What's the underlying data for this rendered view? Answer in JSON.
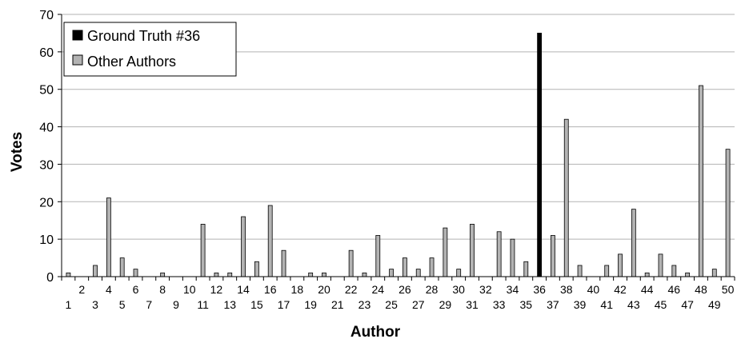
{
  "chart_data": {
    "type": "bar",
    "xlabel": "Author",
    "ylabel": "Votes",
    "ylim": [
      0,
      70
    ],
    "yticks": [
      0,
      10,
      20,
      30,
      40,
      50,
      60,
      70
    ],
    "grid": "horizontal",
    "legend_position": "top-left",
    "categories": [
      "1",
      "2",
      "3",
      "4",
      "5",
      "6",
      "7",
      "8",
      "9",
      "10",
      "11",
      "12",
      "13",
      "14",
      "15",
      "16",
      "17",
      "18",
      "19",
      "20",
      "21",
      "22",
      "23",
      "24",
      "25",
      "26",
      "27",
      "28",
      "29",
      "30",
      "31",
      "32",
      "33",
      "34",
      "35",
      "36",
      "37",
      "38",
      "39",
      "40",
      "41",
      "42",
      "43",
      "44",
      "45",
      "46",
      "47",
      "48",
      "49",
      "50"
    ],
    "series": [
      {
        "name": "Ground Truth #36",
        "color": "#000000",
        "values": [
          0,
          0,
          0,
          0,
          0,
          0,
          0,
          0,
          0,
          0,
          0,
          0,
          0,
          0,
          0,
          0,
          0,
          0,
          0,
          0,
          0,
          0,
          0,
          0,
          0,
          0,
          0,
          0,
          0,
          0,
          0,
          0,
          0,
          0,
          0,
          65,
          0,
          0,
          0,
          0,
          0,
          0,
          0,
          0,
          0,
          0,
          0,
          0,
          0,
          0
        ]
      },
      {
        "name": "Other Authors",
        "color": "#b3b3b3",
        "values": [
          1,
          0,
          3,
          21,
          5,
          2,
          0,
          1,
          0,
          0,
          14,
          1,
          1,
          16,
          4,
          19,
          7,
          0,
          1,
          1,
          0,
          7,
          1,
          11,
          2,
          5,
          2,
          5,
          13,
          2,
          14,
          0,
          12,
          10,
          4,
          0,
          11,
          42,
          3,
          0,
          3,
          6,
          18,
          1,
          6,
          3,
          1,
          51,
          2,
          34
        ]
      }
    ]
  }
}
